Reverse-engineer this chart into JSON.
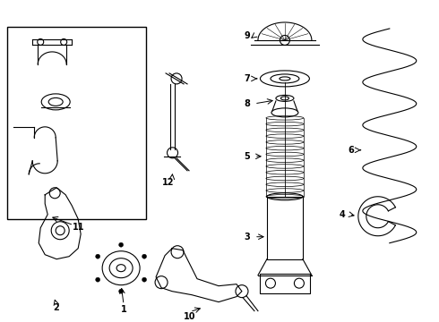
{
  "title": "",
  "bg_color": "#ffffff",
  "line_color": "#000000",
  "label_color": "#000000",
  "fig_width": 4.9,
  "fig_height": 3.6,
  "dpi": 100
}
